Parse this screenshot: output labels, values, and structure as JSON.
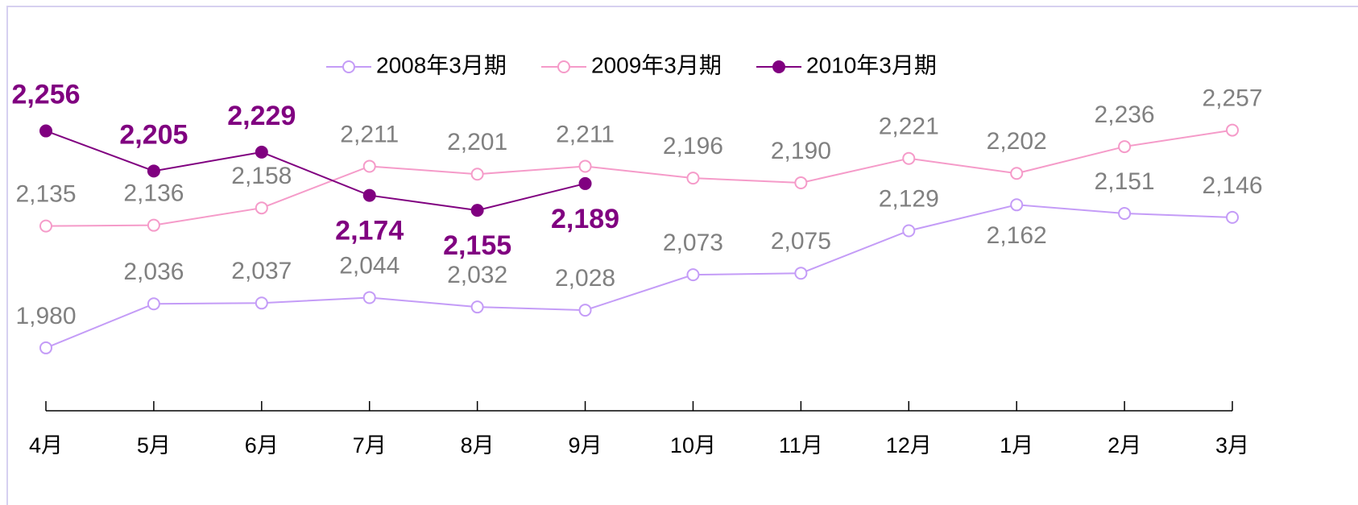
{
  "chart_data": {
    "type": "line",
    "categories": [
      "4月",
      "5月",
      "6月",
      "7月",
      "8月",
      "9月",
      "10月",
      "11月",
      "12月",
      "1月",
      "2月",
      "3月"
    ],
    "series": [
      {
        "name": "2008年3月期",
        "color": "#c49cf7",
        "marker": "open",
        "values": [
          1980,
          2036,
          2037,
          2044,
          2032,
          2028,
          2073,
          2075,
          2129,
          2162,
          2151,
          2146
        ],
        "value_labels": [
          "1,980",
          "2,036",
          "2,037",
          "2,044",
          "2,032",
          "2,028",
          "2,073",
          "2,075",
          "2,129",
          "2,162",
          "2,151",
          "2,146"
        ]
      },
      {
        "name": "2009年3月期",
        "color": "#f59bc9",
        "marker": "open",
        "values": [
          2135,
          2136,
          2158,
          2211,
          2201,
          2211,
          2196,
          2190,
          2221,
          2202,
          2236,
          2257
        ],
        "value_labels": [
          "2,135",
          "2,136",
          "2,158",
          "2,211",
          "2,201",
          "2,211",
          "2,196",
          "2,190",
          "2,221",
          "2,202",
          "2,236",
          "2,257"
        ]
      },
      {
        "name": "2010年3月期",
        "color": "#800080",
        "marker": "filled",
        "values": [
          2256,
          2205,
          2229,
          2174,
          2155,
          2189,
          null,
          null,
          null,
          null,
          null,
          null
        ],
        "value_labels": [
          "2,256",
          "2,205",
          "2,229",
          "2,174",
          "2,155",
          "2,189",
          null,
          null,
          null,
          null,
          null,
          null
        ]
      }
    ],
    "ylim": [
      1900,
      2400
    ],
    "legend": "top"
  }
}
